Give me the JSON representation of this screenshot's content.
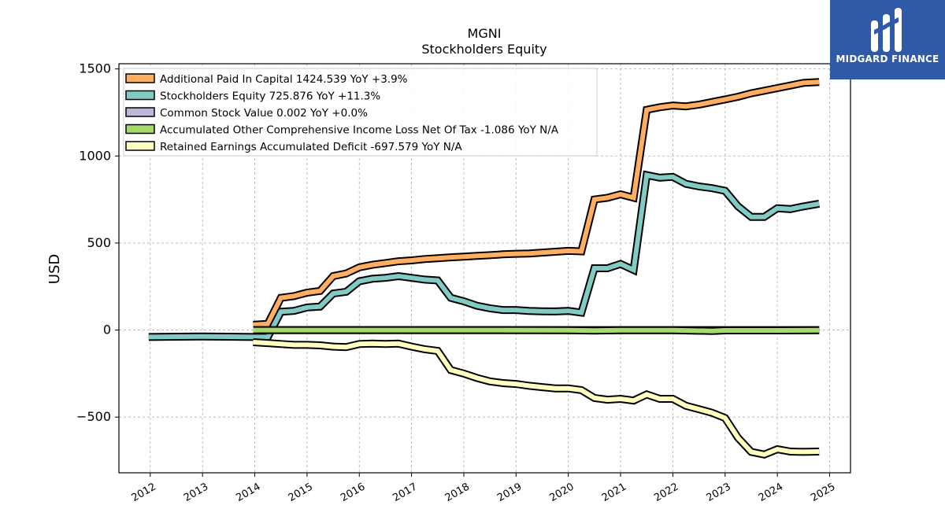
{
  "header": {
    "title_line1": "MGNI",
    "title_line2": "Stockholders  Equity"
  },
  "brand": {
    "name": "MIDGARD FINANCE",
    "bg_color": "#2f5aa8"
  },
  "chart_data": {
    "type": "line",
    "title": "MGNI\nStockholders  Equity",
    "xlabel": "",
    "ylabel": "USD",
    "xlim": [
      2011.4,
      2025.4
    ],
    "ylim": [
      -820,
      1530
    ],
    "yticks": [
      1500,
      1000,
      500,
      0,
      -500
    ],
    "ytick_labels": [
      "1500",
      "1000",
      "500",
      "0",
      "−500"
    ],
    "xticks": [
      2012,
      2013,
      2014,
      2015,
      2016,
      2017,
      2018,
      2019,
      2020,
      2021,
      2022,
      2023,
      2024,
      2025
    ],
    "xtick_labels": [
      "2012",
      "2013",
      "2014",
      "2015",
      "2016",
      "2017",
      "2018",
      "2019",
      "2020",
      "2021",
      "2022",
      "2023",
      "2024",
      "2025"
    ],
    "grid": true,
    "legend_position": "top-left",
    "series": [
      {
        "name": "Additional Paid In Capital",
        "legend": "Additional Paid In Capital  1424.539 YoY +3.9%",
        "color": "#fdae61",
        "points": [
          [
            2013.97,
            30
          ],
          [
            2014.25,
            35
          ],
          [
            2014.5,
            185
          ],
          [
            2014.75,
            195
          ],
          [
            2015.0,
            215
          ],
          [
            2015.25,
            225
          ],
          [
            2015.5,
            310
          ],
          [
            2015.75,
            325
          ],
          [
            2016.0,
            360
          ],
          [
            2016.25,
            375
          ],
          [
            2016.5,
            385
          ],
          [
            2016.75,
            395
          ],
          [
            2017.0,
            400
          ],
          [
            2017.25,
            408
          ],
          [
            2017.5,
            413
          ],
          [
            2017.75,
            418
          ],
          [
            2018.0,
            422
          ],
          [
            2018.25,
            426
          ],
          [
            2018.5,
            430
          ],
          [
            2018.75,
            435
          ],
          [
            2019.0,
            438
          ],
          [
            2019.25,
            440
          ],
          [
            2019.5,
            445
          ],
          [
            2019.75,
            450
          ],
          [
            2020.0,
            455
          ],
          [
            2020.25,
            452
          ],
          [
            2020.5,
            750
          ],
          [
            2020.75,
            760
          ],
          [
            2021.0,
            780
          ],
          [
            2021.25,
            760
          ],
          [
            2021.5,
            1265
          ],
          [
            2021.75,
            1280
          ],
          [
            2022.0,
            1290
          ],
          [
            2022.25,
            1285
          ],
          [
            2022.5,
            1295
          ],
          [
            2022.75,
            1310
          ],
          [
            2023.0,
            1325
          ],
          [
            2023.25,
            1340
          ],
          [
            2023.5,
            1360
          ],
          [
            2023.75,
            1375
          ],
          [
            2024.0,
            1390
          ],
          [
            2024.25,
            1405
          ],
          [
            2024.5,
            1420
          ],
          [
            2024.8,
            1425
          ]
        ]
      },
      {
        "name": "Stockholders Equity",
        "legend": "Stockholders Equity  725.876 YoY +11.3%",
        "color": "#80cbc4",
        "points": [
          [
            2011.97,
            -40
          ],
          [
            2012.5,
            -38
          ],
          [
            2013.0,
            -37
          ],
          [
            2013.5,
            -38
          ],
          [
            2014.0,
            -40
          ],
          [
            2014.25,
            -40
          ],
          [
            2014.5,
            105
          ],
          [
            2014.75,
            110
          ],
          [
            2015.0,
            130
          ],
          [
            2015.25,
            135
          ],
          [
            2015.5,
            210
          ],
          [
            2015.75,
            220
          ],
          [
            2016.0,
            280
          ],
          [
            2016.25,
            295
          ],
          [
            2016.5,
            300
          ],
          [
            2016.75,
            310
          ],
          [
            2017.0,
            300
          ],
          [
            2017.25,
            290
          ],
          [
            2017.5,
            285
          ],
          [
            2017.75,
            185
          ],
          [
            2018.0,
            165
          ],
          [
            2018.25,
            140
          ],
          [
            2018.5,
            125
          ],
          [
            2018.75,
            115
          ],
          [
            2019.0,
            115
          ],
          [
            2019.25,
            110
          ],
          [
            2019.5,
            108
          ],
          [
            2019.75,
            107
          ],
          [
            2020.0,
            110
          ],
          [
            2020.25,
            100
          ],
          [
            2020.5,
            355
          ],
          [
            2020.75,
            355
          ],
          [
            2021.0,
            380
          ],
          [
            2021.25,
            345
          ],
          [
            2021.5,
            890
          ],
          [
            2021.75,
            875
          ],
          [
            2022.0,
            880
          ],
          [
            2022.25,
            840
          ],
          [
            2022.5,
            825
          ],
          [
            2022.75,
            815
          ],
          [
            2023.0,
            800
          ],
          [
            2023.25,
            710
          ],
          [
            2023.5,
            650
          ],
          [
            2023.75,
            650
          ],
          [
            2024.0,
            700
          ],
          [
            2024.25,
            695
          ],
          [
            2024.5,
            710
          ],
          [
            2024.8,
            726
          ]
        ]
      },
      {
        "name": "Common Stock Value",
        "legend": "Common Stock Value  0.002 YoY +0.0%",
        "color": "#bcb8d8",
        "points": [
          [
            2013.97,
            0
          ],
          [
            2024.8,
            0
          ]
        ]
      },
      {
        "name": "Accumulated Other Comprehensive Income Loss Net Of Tax",
        "legend": "Accumulated Other Comprehensive Income Loss Net Of Tax  -1.086 YoY N/A",
        "color": "#a6d96a",
        "points": [
          [
            2013.97,
            0
          ],
          [
            2016.0,
            0
          ],
          [
            2018.0,
            0
          ],
          [
            2020.0,
            -1
          ],
          [
            2020.5,
            -3
          ],
          [
            2021.0,
            -1
          ],
          [
            2022.0,
            -1
          ],
          [
            2022.75,
            -5
          ],
          [
            2023.0,
            -2
          ],
          [
            2024.0,
            -2
          ],
          [
            2024.8,
            -1
          ]
        ]
      },
      {
        "name": "Retained Earnings Accumulated Deficit",
        "legend": "Retained Earnings Accumulated Deficit  -697.579 YoY N/A",
        "color": "#ffffbf",
        "points": [
          [
            2013.97,
            -70
          ],
          [
            2014.25,
            -75
          ],
          [
            2014.5,
            -80
          ],
          [
            2014.75,
            -85
          ],
          [
            2015.0,
            -85
          ],
          [
            2015.25,
            -88
          ],
          [
            2015.5,
            -95
          ],
          [
            2015.75,
            -98
          ],
          [
            2016.0,
            -80
          ],
          [
            2016.25,
            -78
          ],
          [
            2016.5,
            -80
          ],
          [
            2016.75,
            -78
          ],
          [
            2017.0,
            -95
          ],
          [
            2017.25,
            -110
          ],
          [
            2017.5,
            -120
          ],
          [
            2017.75,
            -230
          ],
          [
            2018.0,
            -250
          ],
          [
            2018.25,
            -275
          ],
          [
            2018.5,
            -295
          ],
          [
            2018.75,
            -305
          ],
          [
            2019.0,
            -310
          ],
          [
            2019.25,
            -320
          ],
          [
            2019.5,
            -328
          ],
          [
            2019.75,
            -335
          ],
          [
            2020.0,
            -335
          ],
          [
            2020.25,
            -345
          ],
          [
            2020.5,
            -390
          ],
          [
            2020.75,
            -400
          ],
          [
            2021.0,
            -395
          ],
          [
            2021.25,
            -405
          ],
          [
            2021.5,
            -370
          ],
          [
            2021.75,
            -395
          ],
          [
            2022.0,
            -395
          ],
          [
            2022.25,
            -435
          ],
          [
            2022.5,
            -455
          ],
          [
            2022.75,
            -475
          ],
          [
            2023.0,
            -505
          ],
          [
            2023.25,
            -620
          ],
          [
            2023.5,
            -700
          ],
          [
            2023.75,
            -715
          ],
          [
            2024.0,
            -685
          ],
          [
            2024.25,
            -698
          ],
          [
            2024.5,
            -700
          ],
          [
            2024.8,
            -698
          ]
        ]
      }
    ]
  }
}
